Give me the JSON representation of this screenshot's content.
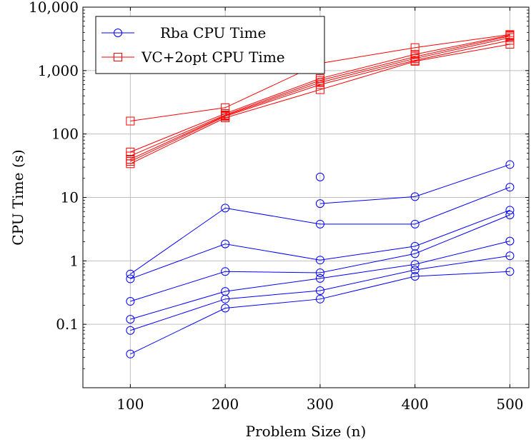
{
  "chart_data": {
    "type": "line",
    "xlabel": "Problem Size (n)",
    "ylabel": "CPU Time (s)",
    "x_scale": "linear",
    "y_scale": "log",
    "xlim": [
      50,
      520
    ],
    "ylim": [
      0.01,
      10000
    ],
    "x_ticks": [
      100,
      200,
      300,
      400,
      500
    ],
    "x_tick_labels": [
      "100",
      "200",
      "300",
      "400",
      "500"
    ],
    "y_ticks": [
      0.1,
      1,
      10,
      100,
      1000,
      10000
    ],
    "y_tick_labels": [
      "0.1",
      "1",
      "10",
      "100",
      "1,000",
      "10,000"
    ],
    "grid": true,
    "legend_position": "top-left",
    "legend": [
      {
        "label": "Rba CPU Time",
        "color": "#0000ff",
        "marker": "circle"
      },
      {
        "label": "VC+2opt CPU Time",
        "color": "#ff0000",
        "marker": "square"
      }
    ],
    "series": [
      {
        "group": "Rba CPU Time",
        "color": "#0000ff",
        "marker": "circle",
        "x": [
          100,
          200,
          300,
          400,
          500
        ],
        "y": [
          0.034,
          0.18,
          0.25,
          0.57,
          0.68
        ]
      },
      {
        "group": "Rba CPU Time",
        "color": "#0000ff",
        "marker": "circle",
        "x": [
          100,
          200,
          300,
          400,
          500
        ],
        "y": [
          0.08,
          0.25,
          0.34,
          0.72,
          1.2
        ]
      },
      {
        "group": "Rba CPU Time",
        "color": "#0000ff",
        "marker": "circle",
        "x": [
          100,
          200,
          300,
          400,
          500
        ],
        "y": [
          0.12,
          0.33,
          0.53,
          0.88,
          2.05
        ]
      },
      {
        "group": "Rba CPU Time",
        "color": "#0000ff",
        "marker": "circle",
        "x": [
          100,
          200,
          300,
          400,
          500
        ],
        "y": [
          0.23,
          0.68,
          0.65,
          1.3,
          5.3
        ]
      },
      {
        "group": "Rba CPU Time",
        "color": "#0000ff",
        "marker": "circle",
        "x": [
          100,
          200,
          300,
          400,
          500
        ],
        "y": [
          0.52,
          1.85,
          1.03,
          1.7,
          6.3
        ]
      },
      {
        "group": "Rba CPU Time",
        "color": "#0000ff",
        "marker": "circle",
        "x": [
          100,
          200,
          300,
          400,
          500
        ],
        "y": [
          0.62,
          6.8,
          3.8,
          3.8,
          14.5
        ]
      },
      {
        "group": "Rba CPU Time",
        "color": "#0000ff",
        "marker": "circle",
        "x": [
          300,
          400,
          500
        ],
        "y": [
          8.0,
          10.3,
          33.0
        ]
      },
      {
        "group": "Rba CPU Time",
        "color": "#0000ff",
        "marker": "circle",
        "x": [
          300
        ],
        "y": [
          21.0
        ]
      },
      {
        "group": "VC+2opt CPU Time",
        "color": "#ff0000",
        "marker": "square",
        "x": [
          100,
          200,
          300,
          400,
          500
        ],
        "y": [
          160,
          260,
          1300,
          2300,
          3700
        ]
      },
      {
        "group": "VC+2opt CPU Time",
        "color": "#ff0000",
        "marker": "square",
        "x": [
          100,
          200,
          300,
          400,
          500
        ],
        "y": [
          52,
          210,
          750,
          1800,
          3600
        ]
      },
      {
        "group": "VC+2opt CPU Time",
        "color": "#ff0000",
        "marker": "square",
        "x": [
          100,
          200,
          300,
          400,
          500
        ],
        "y": [
          45,
          200,
          700,
          1650,
          3500
        ]
      },
      {
        "group": "VC+2opt CPU Time",
        "color": "#ff0000",
        "marker": "square",
        "x": [
          100,
          200,
          300,
          400,
          500
        ],
        "y": [
          40,
          195,
          650,
          1550,
          3300
        ]
      },
      {
        "group": "VC+2opt CPU Time",
        "color": "#ff0000",
        "marker": "square",
        "x": [
          100,
          200,
          300,
          400,
          500
        ],
        "y": [
          37,
          190,
          600,
          1450,
          3000
        ]
      },
      {
        "group": "VC+2opt CPU Time",
        "color": "#ff0000",
        "marker": "square",
        "x": [
          100,
          200,
          300,
          400,
          500
        ],
        "y": [
          34,
          180,
          500,
          1400,
          2600
        ]
      }
    ]
  }
}
